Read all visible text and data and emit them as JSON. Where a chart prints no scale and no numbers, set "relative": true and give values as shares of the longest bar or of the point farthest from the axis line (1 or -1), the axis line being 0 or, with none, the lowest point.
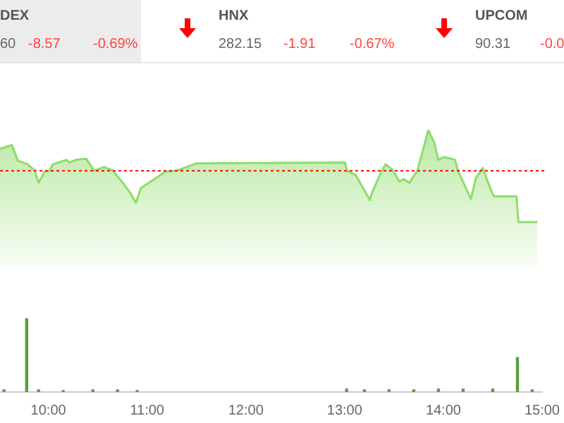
{
  "chart_data": [
    {
      "type": "other",
      "annotations": [
        "DEX",
        "60",
        "-8.57",
        "-0.69%",
        "HNX",
        "282.15",
        "-1.91",
        "-0.67%",
        "UPCOM",
        "90.31",
        "-0.0"
      ]
    },
    {
      "type": "area",
      "relative": true,
      "tick_labels": false,
      "xlim": [
        9.51,
        15.0
      ],
      "series": [
        {
          "color": "#8fdc6a",
          "x": [
            9.51,
            9.63,
            9.69,
            9.79,
            9.86,
            9.9,
            9.96,
            10.01,
            10.04,
            10.18,
            10.21,
            10.28,
            10.38,
            10.46,
            10.56,
            10.65,
            10.74,
            10.83,
            10.88,
            10.93,
            11.04,
            11.18,
            11.29,
            11.39,
            11.49,
            12.99,
            13.01,
            13.1,
            13.24,
            13.26,
            13.36,
            13.4,
            13.47,
            13.54,
            13.58,
            13.64,
            13.72,
            13.79,
            13.83,
            13.89,
            13.93,
            13.99,
            14.1,
            14.13,
            14.21,
            14.26,
            14.31,
            14.38,
            14.44,
            14.49,
            14.72,
            14.74,
            14.93
          ],
          "values": [
            0.8,
            0.84,
            0.67,
            0.63,
            0.56,
            0.43,
            0.55,
            0.56,
            0.63,
            0.68,
            0.65,
            0.68,
            0.69,
            0.56,
            0.6,
            0.56,
            0.44,
            0.31,
            0.21,
            0.37,
            0.45,
            0.55,
            0.56,
            0.6,
            0.64,
            0.65,
            0.56,
            0.51,
            0.24,
            0.31,
            0.56,
            0.63,
            0.57,
            0.44,
            0.47,
            0.43,
            0.56,
            0.84,
            1,
            0.87,
            0.68,
            0.71,
            0.68,
            0.56,
            0.37,
            0.25,
            0.48,
            0.59,
            0.41,
            0.28,
            0.28,
            0,
            0
          ]
        }
      ],
      "ref_lines": [
        {
          "axis": "y",
          "value": 0.56,
          "color": "#ff0000",
          "line_style": "dotted"
        }
      ]
    },
    {
      "type": "bar",
      "relative": true,
      "tick_labels": "x",
      "xlim": [
        9.51,
        15.0
      ],
      "xticks": [
        {
          "value": 10,
          "label": "10:00"
        },
        {
          "value": 11,
          "label": "11:00"
        },
        {
          "value": 12,
          "label": "12:00"
        },
        {
          "value": 13,
          "label": "13:00"
        },
        {
          "value": 14,
          "label": "14:00"
        },
        {
          "value": 15,
          "label": "15:00"
        }
      ],
      "series": [
        {
          "color": "#5a9e3a",
          "x": [
            9.55,
            9.78,
            9.9,
            10.15,
            10.45,
            10.7,
            10.9,
            13.02,
            13.2,
            13.45,
            13.7,
            13.95,
            14.2,
            14.5,
            14.75,
            14.9
          ],
          "values": [
            0.03,
            1,
            0.03,
            0.02,
            0.03,
            0.03,
            0.02,
            0.04,
            0.03,
            0.03,
            0.03,
            0.04,
            0.04,
            0.04,
            0.47,
            0.03
          ]
        }
      ]
    }
  ]
}
